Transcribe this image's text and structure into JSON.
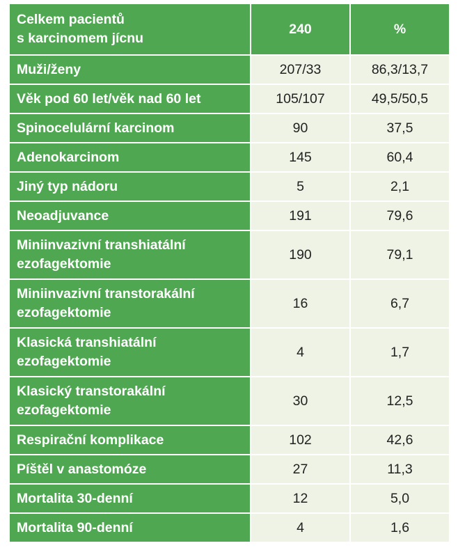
{
  "table": {
    "header": {
      "label": "Celkem pacientů s karcinomem jícnu",
      "label_line1": "Celkem pacientů",
      "label_line2": "s karcinomem jícnu",
      "count": "240",
      "percent": "%"
    },
    "rows": [
      {
        "label": "Muži/ženy",
        "count": "207/33",
        "percent": "86,3/13,7"
      },
      {
        "label": "Věk pod 60 let/věk nad 60 let",
        "count": "105/107",
        "percent": "49,5/50,5"
      },
      {
        "label": "Spinocelulární karcinom",
        "count": "90",
        "percent": "37,5"
      },
      {
        "label": "Adenokarcinom",
        "count": "145",
        "percent": "60,4"
      },
      {
        "label": "Jiný typ nádoru",
        "count": "5",
        "percent": "2,1"
      },
      {
        "label": "Neoadjuvance",
        "count": "191",
        "percent": "79,6"
      },
      {
        "label": "Miniinvazivní transhiatální ezofagektomie",
        "label_line1": "Miniinvazivní transhiatální",
        "label_line2": "ezofagektomie",
        "count": "190",
        "percent": "79,1"
      },
      {
        "label": "Miniinvazivní transtorakální ezofagektomie",
        "label_line1": "Miniinvazivní transtorakální",
        "label_line2": "ezofagektomie",
        "count": "16",
        "percent": "6,7"
      },
      {
        "label": "Klasická transhiatální ezofagektomie",
        "label_line1": "Klasická transhiatální",
        "label_line2": "ezofagektomie",
        "count": "4",
        "percent": "1,7"
      },
      {
        "label": "Klasický transtorakální ezofagektomie",
        "label_line1": "Klasický transtorakální",
        "label_line2": "ezofagektomie",
        "count": "30",
        "percent": "12,5"
      },
      {
        "label": "Respirační komplikace",
        "count": "102",
        "percent": "42,6"
      },
      {
        "label": "Píštěl v anastomóze",
        "count": "27",
        "percent": "11,3"
      },
      {
        "label": "Mortalita 30-denní",
        "count": "12",
        "percent": "5,0"
      },
      {
        "label": "Mortalita 90-denní",
        "count": "4",
        "percent": "1,6"
      }
    ]
  },
  "colors": {
    "header_green": "#4fa851",
    "cell_background": "#eef3e6",
    "header_text": "#ffffff",
    "cell_text": "#222222"
  }
}
